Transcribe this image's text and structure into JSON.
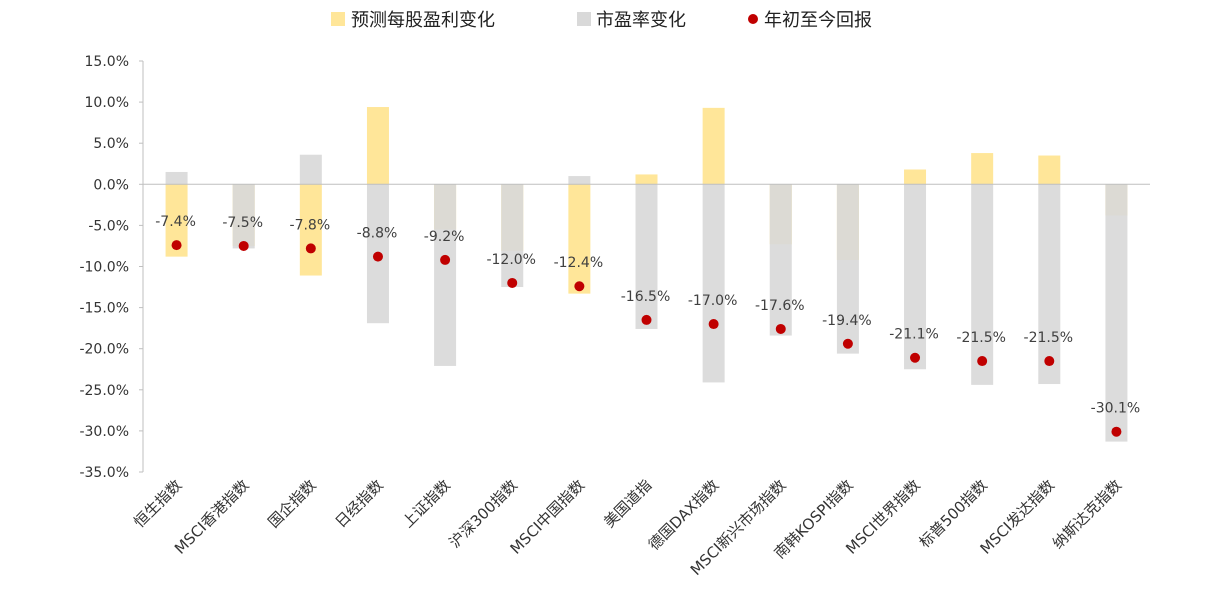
{
  "chart_data": {
    "type": "bar",
    "legend_position": "top",
    "grid": false,
    "ylim": [
      -35,
      15
    ],
    "yticks": [
      15,
      10,
      5,
      0,
      -5,
      -10,
      -15,
      -20,
      -25,
      -30,
      -35
    ],
    "ytick_labels": [
      "15.0%",
      "10.0%",
      "5.0%",
      "0.0%",
      "-5.0%",
      "-10.0%",
      "-15.0%",
      "-20.0%",
      "-25.0%",
      "-30.0%",
      "-35.0%"
    ],
    "categories": [
      "恒生指数",
      "MSCI香港指数",
      "国企指数",
      "日经指数",
      "上证指数",
      "沪深300指数",
      "MSCI中国指数",
      "美国道指",
      "德国DAX指数",
      "MSCI新兴市场指数",
      "南韩KOSPI指数",
      "MSCI世界指数",
      "标普500指数",
      "MSCI发达指数",
      "纳斯达克指数"
    ],
    "series": [
      {
        "name": "预测每股盈利变化",
        "kind": "bar",
        "color": "#FFE699",
        "values": [
          -8.8,
          -7.5,
          -11.1,
          9.4,
          -5.5,
          -8.1,
          -13.3,
          1.2,
          9.3,
          -7.3,
          -9.2,
          1.8,
          3.8,
          3.5,
          -3.8
        ]
      },
      {
        "name": "市盈率变化",
        "kind": "bar",
        "color": "#D9D9D9",
        "values": [
          1.5,
          -7.8,
          3.6,
          -16.9,
          -22.1,
          -12.5,
          1.0,
          -17.6,
          -24.1,
          -18.4,
          -20.6,
          -22.5,
          -24.4,
          -24.3,
          -31.3
        ]
      },
      {
        "name": "年初至今回报",
        "kind": "scatter",
        "color": "#C00000",
        "values": [
          -7.4,
          -7.5,
          -7.8,
          -8.8,
          -9.2,
          -12.0,
          -12.4,
          -16.5,
          -17.0,
          -17.6,
          -19.4,
          -21.1,
          -21.5,
          -21.5,
          -30.1
        ],
        "labels": [
          "-7.4%",
          "-7.5%",
          "-7.8%",
          "-8.8%",
          "-9.2%",
          "-12.0%",
          "-12.4%",
          "-16.5%",
          "-17.0%",
          "-17.6%",
          "-19.4%",
          "-21.1%",
          "-21.5%",
          "-21.5%",
          "-30.1%"
        ]
      }
    ]
  }
}
